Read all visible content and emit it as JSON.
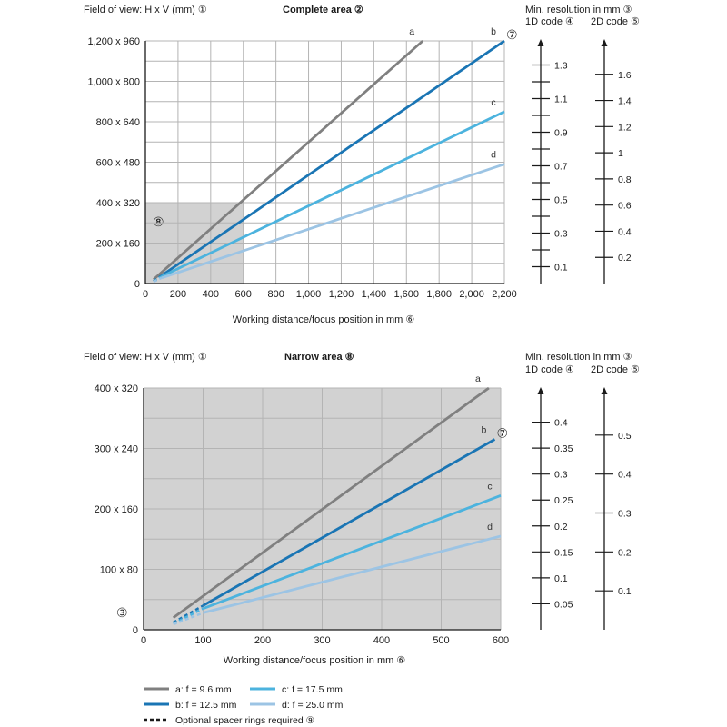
{
  "colors": {
    "a": "#808080",
    "b": "#1a75b4",
    "c": "#4cb3de",
    "d": "#9cc4e4",
    "shade": "#d2d2d2",
    "grid": "#b4b4b4",
    "axis": "#1a1a1a"
  },
  "chart_data": [
    {
      "type": "line",
      "id": "complete",
      "title": "Complete area ②",
      "ylabel": "Field of view: H x V (mm) ①",
      "xlabel": "Working distance/focus position in mm ⑥",
      "xlim": [
        0,
        2200
      ],
      "ylim": [
        0,
        1200
      ],
      "x_ticks": [
        0,
        200,
        400,
        600,
        800,
        1000,
        1200,
        1400,
        1600,
        1800,
        2000,
        2200
      ],
      "x_tick_labels": [
        "0",
        "200",
        "400",
        "600",
        "800",
        "1,000",
        "1,200",
        "1,400",
        "1,600",
        "1,800",
        "2,000",
        "2,200"
      ],
      "y_ticks": [
        0,
        200,
        400,
        600,
        800,
        1000,
        1200
      ],
      "y_tick_labels": [
        "0",
        "200 x 160",
        "400 x 320",
        "600 x 480",
        "800 x 640",
        "1,000 x 800",
        "1,200 x 960"
      ],
      "grid": true,
      "shaded_region": {
        "x": [
          0,
          600
        ],
        "y": [
          0,
          400
        ],
        "label": "⑧"
      },
      "series": [
        {
          "name": "a",
          "color_key": "a",
          "x": [
            50,
            1700
          ],
          "y": [
            20,
            1200
          ],
          "dashed_x": [],
          "dashed_y": []
        },
        {
          "name": "b",
          "color_key": "b",
          "x": [
            100,
            2200
          ],
          "y": [
            40,
            1200
          ],
          "dashed_x": [
            50,
            100
          ],
          "dashed_y": [
            12,
            40
          ],
          "marker": "⑦"
        },
        {
          "name": "c",
          "color_key": "c",
          "x": [
            100,
            2200
          ],
          "y": [
            35,
            850
          ],
          "dashed_x": [
            50,
            100
          ],
          "dashed_y": [
            10,
            35
          ]
        },
        {
          "name": "d",
          "color_key": "d",
          "x": [
            100,
            2200
          ],
          "y": [
            28,
            590
          ],
          "dashed_x": [
            50,
            100
          ],
          "dashed_y": [
            9,
            28
          ]
        }
      ]
    },
    {
      "type": "line",
      "id": "narrow",
      "title": "Narrow area ⑧",
      "ylabel": "Field of view: H x V (mm) ①",
      "xlabel": "Working distance/focus position in mm ⑥",
      "xlim": [
        0,
        600
      ],
      "ylim": [
        0,
        400
      ],
      "x_ticks": [
        0,
        100,
        200,
        300,
        400,
        500,
        600
      ],
      "x_tick_labels": [
        "0",
        "100",
        "200",
        "300",
        "400",
        "500",
        "600"
      ],
      "y_ticks": [
        0,
        100,
        200,
        300,
        400
      ],
      "y_tick_labels": [
        "0",
        "100 x 80",
        "200 x 160",
        "300 x 240",
        "400 x 320"
      ],
      "grid": true,
      "shaded_region": {
        "x": [
          0,
          600
        ],
        "y": [
          0,
          400
        ],
        "label": ""
      },
      "corner_marker": "③",
      "series": [
        {
          "name": "a",
          "color_key": "a",
          "x": [
            50,
            580
          ],
          "y": [
            20,
            400
          ],
          "dashed_x": [],
          "dashed_y": []
        },
        {
          "name": "b",
          "color_key": "b",
          "x": [
            100,
            590
          ],
          "y": [
            40,
            315
          ],
          "dashed_x": [
            50,
            100
          ],
          "dashed_y": [
            12,
            40
          ],
          "marker": "⑦"
        },
        {
          "name": "c",
          "color_key": "c",
          "x": [
            100,
            600
          ],
          "y": [
            35,
            222
          ],
          "dashed_x": [
            50,
            100
          ],
          "dashed_y": [
            10,
            35
          ]
        },
        {
          "name": "d",
          "color_key": "d",
          "x": [
            100,
            600
          ],
          "y": [
            28,
            155
          ],
          "dashed_x": [
            50,
            100
          ],
          "dashed_y": [
            9,
            28
          ]
        }
      ]
    }
  ],
  "resolution_scales": [
    {
      "chart": "complete",
      "header": "Min. resolution in mm ③",
      "code1d_label": "1D code ④",
      "code2d_label": "2D code ⑤",
      "code1d": {
        "range": [
          0,
          1.4
        ],
        "labeled": [
          0.1,
          0.3,
          0.5,
          0.7,
          0.9,
          1.1,
          1.3
        ],
        "unlabeled": [
          0.2,
          0.4,
          0.6,
          0.8,
          1.0,
          1.2
        ]
      },
      "code2d": {
        "range": [
          0,
          1.8
        ],
        "labeled": [
          0.2,
          0.4,
          0.6,
          0.8,
          1.0,
          1.2,
          1.4,
          1.6
        ]
      }
    },
    {
      "chart": "narrow",
      "header": "Min. resolution in mm ③",
      "code1d_label": "1D code ④",
      "code2d_label": "2D code ⑤",
      "code1d": {
        "range": [
          0,
          0.45
        ],
        "labeled": [
          0.05,
          0.1,
          0.15,
          0.2,
          0.25,
          0.3,
          0.35,
          0.4
        ],
        "unlabeled": []
      },
      "code2d": {
        "range": [
          0,
          0.6
        ],
        "labeled": [
          0.1,
          0.2,
          0.3,
          0.4,
          0.5
        ]
      }
    }
  ],
  "legend": {
    "items": [
      {
        "key": "a",
        "label": "a: f = 9.6 mm"
      },
      {
        "key": "b",
        "label": "b: f = 12.5 mm"
      },
      {
        "key": "c",
        "label": "c: f = 17.5 mm"
      },
      {
        "key": "d",
        "label": "d: f = 25.0 mm"
      }
    ],
    "dashed_label": "Optional spacer rings required ⑨"
  }
}
